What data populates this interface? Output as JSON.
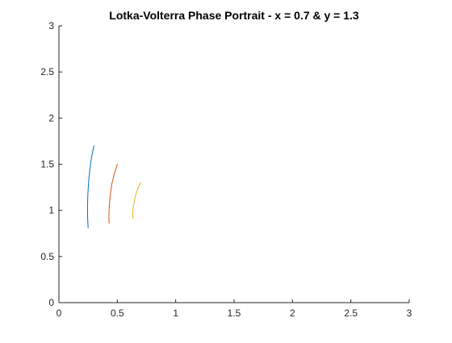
{
  "chart_data": {
    "type": "line",
    "title": "Lotka-Volterra Phase Portrait - x = 0.7 & y = 1.3",
    "xlabel": "",
    "ylabel": "",
    "xlim": [
      0,
      3
    ],
    "ylim": [
      0,
      3
    ],
    "xticks": [
      "0",
      "0.5",
      "1",
      "1.5",
      "2",
      "2.5",
      "3"
    ],
    "yticks": [
      "0",
      "0.5",
      "1",
      "1.5",
      "2",
      "2.5",
      "3"
    ],
    "grid": false,
    "legend": "none",
    "series": [
      {
        "color": "#0072BD",
        "x": [
          0.3,
          0.28,
          0.265,
          0.255,
          0.248,
          0.245,
          0.245,
          0.248,
          0.25
        ],
        "y": [
          1.7,
          1.58,
          1.45,
          1.32,
          1.18,
          1.05,
          0.95,
          0.86,
          0.81
        ]
      },
      {
        "color": "#D95319",
        "x": [
          0.5,
          0.475,
          0.452,
          0.438,
          0.43,
          0.428,
          0.43
        ],
        "y": [
          1.5,
          1.4,
          1.28,
          1.15,
          1.02,
          0.93,
          0.86
        ]
      },
      {
        "color": "#EDB120",
        "x": [
          0.7,
          0.68,
          0.66,
          0.645,
          0.635,
          0.632,
          0.635
        ],
        "y": [
          1.3,
          1.25,
          1.18,
          1.1,
          1.02,
          0.96,
          0.91
        ]
      }
    ]
  }
}
